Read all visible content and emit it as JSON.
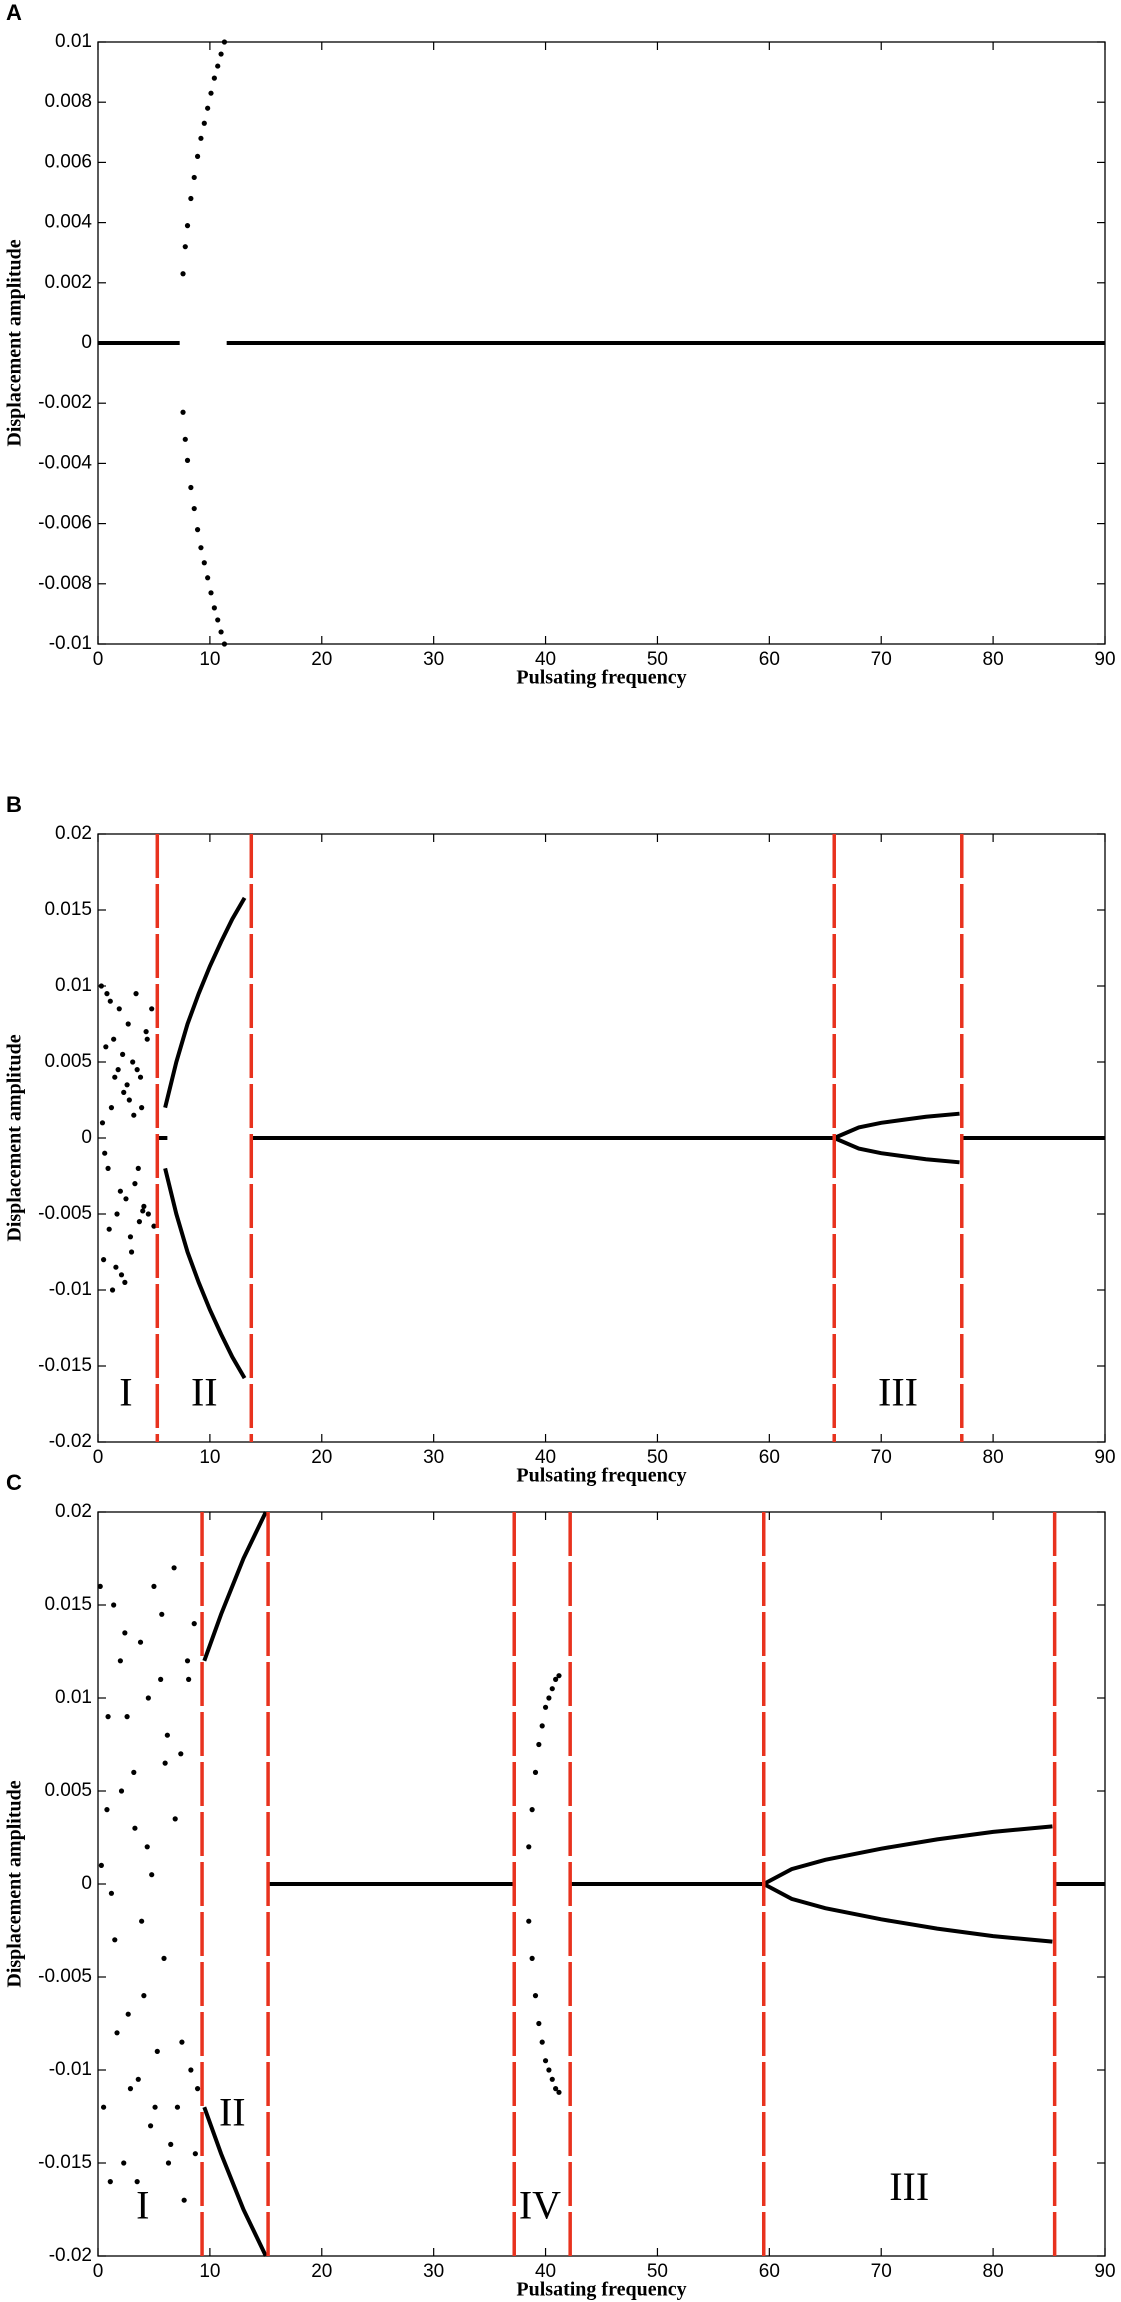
{
  "chart_data": [
    {
      "type": "scatter",
      "label": "A",
      "xlabel": "Pulsating frequency",
      "ylabel": "Displacement amplitude",
      "xlim": [
        0,
        90
      ],
      "xticks": [
        0,
        10,
        20,
        30,
        40,
        50,
        60,
        70,
        80,
        90
      ],
      "ylim": [
        -0.01,
        0.01
      ],
      "yticks": [
        -0.01,
        -0.008,
        -0.006,
        -0.004,
        -0.002,
        0,
        0.002,
        0.004,
        0.006,
        0.008,
        0.01
      ],
      "vlines": [],
      "vline_color": "#e8321e",
      "annotations": [],
      "series": [
        {
          "mode": "line",
          "color": "#000000",
          "x": [
            0,
            7.3
          ],
          "values": [
            0,
            0
          ]
        },
        {
          "mode": "line",
          "color": "#000000",
          "x": [
            11.5,
            90
          ],
          "values": [
            0,
            0
          ]
        },
        {
          "mode": "markers",
          "color": "#000000",
          "x": [
            7.6,
            7.8,
            8.0,
            8.3,
            8.6,
            8.9,
            9.2,
            9.5,
            9.8,
            10.1,
            10.4,
            10.7,
            11.0,
            11.3
          ],
          "values": [
            0.0023,
            0.0032,
            0.0039,
            0.0048,
            0.0055,
            0.0062,
            0.0068,
            0.0073,
            0.0078,
            0.0083,
            0.0088,
            0.0092,
            0.0096,
            0.01
          ]
        },
        {
          "mode": "markers",
          "color": "#000000",
          "x": [
            7.6,
            7.8,
            8.0,
            8.3,
            8.6,
            8.9,
            9.2,
            9.5,
            9.8,
            10.1,
            10.4,
            10.7,
            11.0,
            11.3
          ],
          "values": [
            -0.0023,
            -0.0032,
            -0.0039,
            -0.0048,
            -0.0055,
            -0.0062,
            -0.0068,
            -0.0073,
            -0.0078,
            -0.0083,
            -0.0088,
            -0.0092,
            -0.0096,
            -0.01
          ]
        }
      ]
    },
    {
      "type": "scatter",
      "label": "B",
      "xlabel": "Pulsating frequency",
      "ylabel": "Displacement amplitude",
      "xlim": [
        0,
        90
      ],
      "xticks": [
        0,
        10,
        20,
        30,
        40,
        50,
        60,
        70,
        80,
        90
      ],
      "ylim": [
        -0.02,
        0.02
      ],
      "yticks": [
        -0.02,
        -0.015,
        -0.01,
        -0.005,
        0,
        0.005,
        0.01,
        0.015,
        0.02
      ],
      "vlines": [
        5.3,
        13.7,
        65.8,
        77.2
      ],
      "vline_color": "#e8321e",
      "annotations": [
        {
          "text": "I",
          "x": 2.5,
          "y": -0.017
        },
        {
          "text": "II",
          "x": 9.5,
          "y": -0.017
        },
        {
          "text": "III",
          "x": 71.5,
          "y": -0.017
        }
      ],
      "series": [
        {
          "mode": "markers",
          "color": "#000000",
          "x": [
            0.3,
            0.5,
            0.7,
            0.9,
            1.1,
            1.3,
            1.5,
            1.7,
            1.9,
            2.1,
            2.3,
            2.5,
            2.7,
            2.9,
            3.1,
            3.3,
            3.5,
            3.7,
            3.9,
            4.1,
            4.3,
            4.5,
            0.4,
            0.6,
            0.8,
            1.0,
            1.2,
            1.4,
            1.6,
            1.8,
            2.0,
            2.2,
            2.4,
            2.6,
            2.8,
            3.0,
            3.2,
            3.4,
            3.6,
            3.8,
            4.0,
            4.4,
            4.8,
            5.0
          ],
          "values": [
            0.01,
            -0.008,
            0.006,
            -0.002,
            0.009,
            -0.01,
            0.004,
            -0.005,
            0.0085,
            -0.009,
            0.003,
            -0.004,
            0.0075,
            -0.0065,
            0.005,
            -0.003,
            0.0045,
            -0.0055,
            0.002,
            -0.0045,
            0.007,
            -0.005,
            0.001,
            -0.001,
            0.0095,
            -0.006,
            0.002,
            0.0065,
            -0.0085,
            0.0045,
            -0.0035,
            0.0055,
            -0.0095,
            0.0035,
            0.0025,
            -0.0075,
            0.0015,
            0.0095,
            -0.002,
            0.004,
            -0.0048,
            0.0065,
            0.0085,
            -0.0058
          ]
        },
        {
          "mode": "line",
          "color": "#000000",
          "x": [
            5.3,
            6.2
          ],
          "values": [
            0,
            0
          ]
        },
        {
          "mode": "line",
          "color": "#000000",
          "x": [
            6,
            7,
            8,
            9,
            10,
            11,
            12,
            13.1
          ],
          "values": [
            0.002,
            0.005,
            0.0075,
            0.0095,
            0.0113,
            0.0129,
            0.0144,
            0.0158
          ]
        },
        {
          "mode": "line",
          "color": "#000000",
          "x": [
            6,
            7,
            8,
            9,
            10,
            11,
            12,
            13.1
          ],
          "values": [
            -0.002,
            -0.005,
            -0.0075,
            -0.0095,
            -0.0113,
            -0.0129,
            -0.0144,
            -0.0158
          ]
        },
        {
          "mode": "line",
          "color": "#000000",
          "x": [
            13.7,
            65.8
          ],
          "values": [
            0,
            0
          ]
        },
        {
          "mode": "line",
          "color": "#000000",
          "x": [
            65.8,
            68,
            70,
            72,
            74,
            77
          ],
          "values": [
            0,
            0.0007,
            0.001,
            0.0012,
            0.0014,
            0.0016
          ]
        },
        {
          "mode": "line",
          "color": "#000000",
          "x": [
            65.8,
            68,
            70,
            72,
            74,
            77
          ],
          "values": [
            0,
            -0.0007,
            -0.001,
            -0.0012,
            -0.0014,
            -0.0016
          ]
        },
        {
          "mode": "line",
          "color": "#000000",
          "x": [
            77.2,
            90
          ],
          "values": [
            0,
            0
          ]
        }
      ]
    },
    {
      "type": "scatter",
      "label": "C",
      "xlabel": "Pulsating frequency",
      "ylabel": "Displacement amplitude",
      "xlim": [
        0,
        90
      ],
      "xticks": [
        0,
        10,
        20,
        30,
        40,
        50,
        60,
        70,
        80,
        90
      ],
      "ylim": [
        -0.02,
        0.02
      ],
      "yticks": [
        -0.02,
        -0.015,
        -0.01,
        -0.005,
        0,
        0.005,
        0.01,
        0.015,
        0.02
      ],
      "vlines": [
        9.3,
        15.2,
        37.2,
        42.2,
        59.5,
        85.5
      ],
      "vline_color": "#e8321e",
      "annotations": [
        {
          "text": "I",
          "x": 4,
          "y": -0.0175
        },
        {
          "text": "II",
          "x": 12,
          "y": -0.0125
        },
        {
          "text": "IV",
          "x": 39.5,
          "y": -0.0175
        },
        {
          "text": "III",
          "x": 72.5,
          "y": -0.0165
        }
      ],
      "series": [
        {
          "mode": "markers",
          "color": "#000000",
          "x": [
            0.2,
            0.5,
            0.8,
            1.1,
            1.4,
            1.7,
            2.0,
            2.3,
            2.6,
            2.9,
            3.2,
            3.5,
            3.8,
            4.1,
            4.4,
            4.7,
            5.0,
            5.3,
            5.6,
            5.9,
            6.2,
            6.5,
            6.8,
            7.1,
            7.4,
            7.7,
            8.0,
            8.3,
            8.6,
            8.9,
            0.3,
            0.9,
            1.5,
            2.1,
            2.7,
            3.3,
            3.9,
            4.5,
            5.1,
            5.7,
            6.3,
            6.9,
            7.5,
            8.1,
            8.7,
            1.2,
            2.4,
            3.6,
            4.8,
            6.0
          ],
          "values": [
            0.016,
            -0.012,
            0.004,
            -0.016,
            0.015,
            -0.008,
            0.012,
            -0.015,
            0.009,
            -0.011,
            0.006,
            -0.016,
            0.013,
            -0.006,
            0.002,
            -0.013,
            0.016,
            -0.009,
            0.011,
            -0.004,
            0.008,
            -0.014,
            0.017,
            -0.012,
            0.007,
            -0.017,
            0.012,
            -0.01,
            0.014,
            -0.011,
            0.001,
            0.009,
            -0.003,
            0.005,
            -0.007,
            0.003,
            -0.002,
            0.01,
            -0.012,
            0.0145,
            -0.015,
            0.0035,
            -0.0085,
            0.011,
            -0.0145,
            -0.0005,
            0.0135,
            -0.0105,
            0.0005,
            0.0065
          ]
        },
        {
          "mode": "line",
          "color": "#000000",
          "x": [
            9.5,
            11,
            13,
            15
          ],
          "values": [
            0.012,
            0.0145,
            0.0175,
            0.02
          ]
        },
        {
          "mode": "line",
          "color": "#000000",
          "x": [
            9.5,
            11,
            13,
            15
          ],
          "values": [
            -0.012,
            -0.0145,
            -0.0175,
            -0.02
          ]
        },
        {
          "mode": "line",
          "color": "#000000",
          "x": [
            15.2,
            37.2
          ],
          "values": [
            0,
            0
          ]
        },
        {
          "mode": "markers",
          "color": "#000000",
          "x": [
            38.5,
            38.8,
            39.1,
            39.4,
            39.7,
            40.0,
            40.3,
            40.6,
            40.9,
            41.2
          ],
          "values": [
            0.002,
            0.004,
            0.006,
            0.0075,
            0.0085,
            0.0095,
            0.01,
            0.0105,
            0.011,
            0.0112
          ]
        },
        {
          "mode": "markers",
          "color": "#000000",
          "x": [
            38.5,
            38.8,
            39.1,
            39.4,
            39.7,
            40.0,
            40.3,
            40.6,
            40.9,
            41.2
          ],
          "values": [
            -0.002,
            -0.004,
            -0.006,
            -0.0075,
            -0.0085,
            -0.0095,
            -0.01,
            -0.0105,
            -0.011,
            -0.0112
          ]
        },
        {
          "mode": "line",
          "color": "#000000",
          "x": [
            42.2,
            59.5
          ],
          "values": [
            0,
            0
          ]
        },
        {
          "mode": "line",
          "color": "#000000",
          "x": [
            59.5,
            62,
            65,
            70,
            75,
            80,
            85.3
          ],
          "values": [
            0,
            0.0008,
            0.0013,
            0.0019,
            0.0024,
            0.0028,
            0.0031
          ]
        },
        {
          "mode": "line",
          "color": "#000000",
          "x": [
            59.5,
            62,
            65,
            70,
            75,
            80,
            85.3
          ],
          "values": [
            0,
            -0.0008,
            -0.0013,
            -0.0019,
            -0.0024,
            -0.0028,
            -0.0031
          ]
        },
        {
          "mode": "line",
          "color": "#000000",
          "x": [
            85.5,
            90
          ],
          "values": [
            0,
            0
          ]
        }
      ]
    }
  ]
}
